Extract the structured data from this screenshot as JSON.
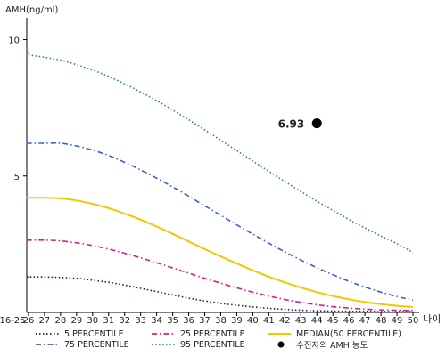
{
  "chart_data": {
    "type": "line",
    "ylabel": "AMH(ng/ml)",
    "xlabel": "나이",
    "ylim": [
      0,
      10.8
    ],
    "y_ticks": [
      {
        "value": 10,
        "label": "10"
      },
      {
        "value": 5,
        "label": "5"
      }
    ],
    "x": [
      "16-25",
      "26",
      "27",
      "28",
      "29",
      "30",
      "31",
      "32",
      "33",
      "34",
      "35",
      "36",
      "37",
      "38",
      "39",
      "40",
      "41",
      "42",
      "43",
      "44",
      "45",
      "46",
      "47",
      "48",
      "49",
      "50"
    ],
    "series": [
      {
        "name": "5 PERCENTILE",
        "color": "#1a1a6e",
        "dash": "dot",
        "values": [
          1.3,
          1.3,
          1.3,
          1.28,
          1.25,
          1.18,
          1.1,
          1.0,
          0.88,
          0.76,
          0.64,
          0.52,
          0.42,
          0.33,
          0.26,
          0.2,
          0.15,
          0.11,
          0.08,
          0.06,
          0.05,
          0.04,
          0.04,
          0.03,
          0.03,
          0.03
        ]
      },
      {
        "name": "25 PERCENTILE",
        "color": "#d6207c",
        "dash": "dashdot",
        "values": [
          2.65,
          2.65,
          2.65,
          2.62,
          2.55,
          2.45,
          2.32,
          2.17,
          2.0,
          1.82,
          1.63,
          1.44,
          1.25,
          1.07,
          0.9,
          0.74,
          0.6,
          0.47,
          0.37,
          0.28,
          0.21,
          0.16,
          0.12,
          0.09,
          0.08,
          0.07
        ]
      },
      {
        "name": "75 PERCENTILE",
        "color": "#3a5fcd",
        "dash": "dashdot",
        "values": [
          6.2,
          6.2,
          6.2,
          6.2,
          6.1,
          5.95,
          5.75,
          5.5,
          5.22,
          4.92,
          4.6,
          4.26,
          3.91,
          3.56,
          3.21,
          2.87,
          2.54,
          2.22,
          1.92,
          1.64,
          1.38,
          1.14,
          0.93,
          0.74,
          0.58,
          0.45
        ]
      },
      {
        "name": "MEDIAN(50 PERCENTILE)",
        "color": "#f0c800",
        "dash": "solid",
        "values": [
          4.2,
          4.2,
          4.2,
          4.18,
          4.1,
          3.98,
          3.82,
          3.62,
          3.4,
          3.15,
          2.88,
          2.6,
          2.32,
          2.05,
          1.79,
          1.54,
          1.31,
          1.1,
          0.91,
          0.74,
          0.6,
          0.48,
          0.38,
          0.3,
          0.24,
          0.2
        ]
      },
      {
        "name": "95 PERCENTILE",
        "color": "#2e8b57",
        "dash": "dot",
        "values": [
          9.55,
          9.45,
          9.35,
          9.25,
          9.08,
          8.88,
          8.65,
          8.38,
          8.08,
          7.76,
          7.42,
          7.06,
          6.69,
          6.31,
          5.93,
          5.55,
          5.17,
          4.8,
          4.43,
          4.08,
          3.74,
          3.41,
          3.1,
          2.8,
          2.52,
          2.2
        ]
      }
    ],
    "points": [
      {
        "name": "수진자의 AMH 농도",
        "x": "44",
        "y": 6.93,
        "label": "6.93",
        "color": "#000000"
      }
    ]
  }
}
